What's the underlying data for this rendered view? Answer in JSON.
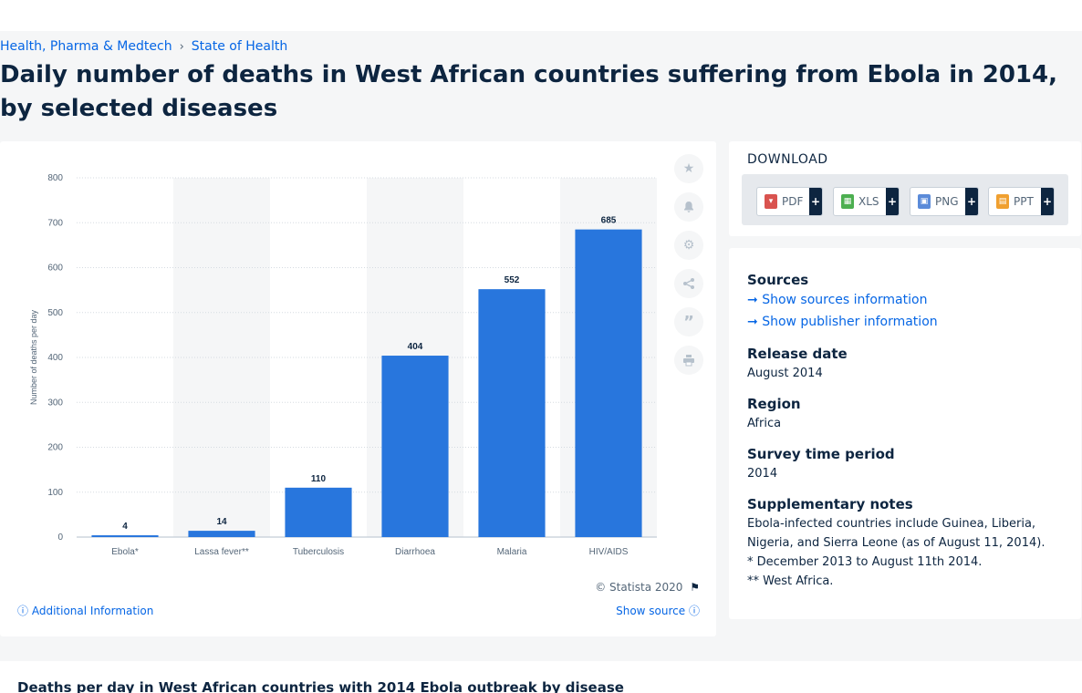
{
  "breadcrumb": {
    "items": [
      "Health, Pharma & Medtech",
      "State of Health"
    ],
    "separator": "›"
  },
  "page_title": "Daily number of deaths in West African countries suffering from Ebola in 2014, by selected diseases",
  "chart_data": {
    "type": "bar",
    "categories": [
      "Ebola*",
      "Lassa fever**",
      "Tuberculosis",
      "Diarrhoea",
      "Malaria",
      "HIV/AIDS"
    ],
    "values": [
      4,
      14,
      110,
      404,
      552,
      685
    ],
    "ylabel": "Number of deaths per day",
    "xlabel": "",
    "ylim": [
      0,
      800
    ],
    "yticks": [
      0,
      100,
      200,
      300,
      400,
      500,
      600,
      700,
      800
    ],
    "grid": true,
    "bar_color": "#2876dd",
    "data_labels": true
  },
  "chart_footer": {
    "copyright": "© Statista 2020",
    "additional_info": "Additional Information",
    "show_source": "Show source"
  },
  "download": {
    "heading": "DOWNLOAD",
    "buttons": [
      {
        "label": "PDF",
        "plus": "+",
        "color": "#d9534f"
      },
      {
        "label": "XLS",
        "plus": "+",
        "color": "#4caf50"
      },
      {
        "label": "PNG",
        "plus": "+",
        "color": "#5b8bd9"
      },
      {
        "label": "PPT",
        "plus": "+",
        "color": "#f0a030"
      }
    ]
  },
  "info": {
    "sources_heading": "Sources",
    "show_sources": "Show sources information",
    "show_publisher": "Show publisher information",
    "release_date_heading": "Release date",
    "release_date": "August 2014",
    "region_heading": "Region",
    "region": "Africa",
    "survey_period_heading": "Survey time period",
    "survey_period": "2014",
    "notes_heading": "Supplementary notes",
    "notes": [
      "Ebola-infected countries include Guinea, Liberia,",
      "Nigeria, and Sierra Leone (as of August 11, 2014).",
      "* December 2013 to August 11th 2014.",
      "** West Africa."
    ]
  },
  "bottom_title": "Deaths per day in West African countries with 2014 Ebola outbreak by disease"
}
